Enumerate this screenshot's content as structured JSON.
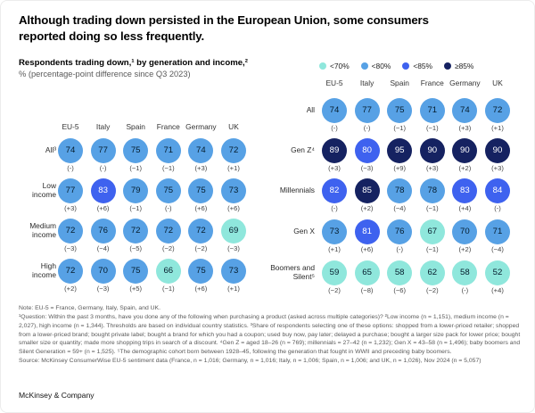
{
  "page": {
    "title_line1": "Although trading down persisted in the European Union, some consumers",
    "title_line2": "reported doing so less frequently.",
    "logo": "McKinsey & Company"
  },
  "subtitle": {
    "heading": "Respondents trading down,¹ by generation and income,²",
    "unit": "% (percentage-point difference since Q3 2023)"
  },
  "legend": {
    "items": [
      {
        "label": "<70%",
        "color": "#8FE7DC"
      },
      {
        "label": "<80%",
        "color": "#57A1E5"
      },
      {
        "label": "<85%",
        "color": "#3E62EF"
      },
      {
        "label": "≥85%",
        "color": "#152261"
      }
    ]
  },
  "palette": {
    "teal_lt70": "#8FE7DC",
    "blue_lt80": "#57A1E5",
    "royal_lt85": "#3E62EF",
    "navy_ge85": "#152261",
    "dark_text": "#051C2C",
    "light_text": "#FFFFFF"
  },
  "chart_data": {
    "type": "circle-matrix",
    "title": "Respondents trading down, by generation and income",
    "unit": "% of respondents; parentheses show percentage-point difference since Q3 2023",
    "color_rule": "value <70 teal; 70-79 blue; 80-84 royal blue; >=85 navy; text white when value >=80",
    "columns": [
      "EU-5",
      "Italy",
      "Spain",
      "France",
      "Germany",
      "UK"
    ],
    "charts": [
      {
        "id": "income",
        "rows": [
          {
            "label": "All³",
            "values": [
              74,
              77,
              75,
              71,
              74,
              72
            ],
            "deltas": [
              "(-)",
              "(-)",
              "(−1)",
              "(−1)",
              "(+3)",
              "(+1)"
            ]
          },
          {
            "label": "Low income",
            "values": [
              77,
              83,
              79,
              75,
              75,
              73
            ],
            "deltas": [
              "(+3)",
              "(+6)",
              "(−1)",
              "(-)",
              "(+6)",
              "(+6)"
            ]
          },
          {
            "label": "Medium income",
            "values": [
              72,
              76,
              72,
              72,
              72,
              69
            ],
            "deltas": [
              "(−3)",
              "(−4)",
              "(−5)",
              "(−2)",
              "(−2)",
              "(−3)"
            ]
          },
          {
            "label": "High income",
            "values": [
              72,
              70,
              75,
              66,
              75,
              73
            ],
            "deltas": [
              "(+2)",
              "(−3)",
              "(+5)",
              "(−1)",
              "(+6)",
              "(+1)"
            ]
          }
        ]
      },
      {
        "id": "generation",
        "rows": [
          {
            "label": "All",
            "values": [
              74,
              77,
              75,
              71,
              74,
              72
            ],
            "deltas": [
              "(-)",
              "(-)",
              "(−1)",
              "(−1)",
              "(+3)",
              "(+1)"
            ]
          },
          {
            "label": "Gen Z⁴",
            "values": [
              89,
              80,
              95,
              90,
              90,
              90
            ],
            "deltas": [
              "(+3)",
              "(−3)",
              "(+9)",
              "(+3)",
              "(+2)",
              "(+3)"
            ]
          },
          {
            "label": "Millennials",
            "values": [
              82,
              85,
              78,
              78,
              83,
              84
            ],
            "deltas": [
              "(-)",
              "(+2)",
              "(−4)",
              "(−1)",
              "(+4)",
              "(-)"
            ]
          },
          {
            "label": "Gen X",
            "values": [
              73,
              81,
              76,
              67,
              70,
              71
            ],
            "deltas": [
              "(+1)",
              "(+6)",
              "(-)",
              "(−1)",
              "(+2)",
              "(−4)"
            ]
          },
          {
            "label": "Boomers and Silent⁵",
            "values": [
              59,
              65,
              58,
              62,
              58,
              52
            ],
            "deltas": [
              "(−2)",
              "(−8)",
              "(−6)",
              "(−2)",
              "(-)",
              "(+4)"
            ]
          }
        ]
      }
    ]
  },
  "footnotes": {
    "note": "Note: EU-5 = France, Germany, Italy, Spain, and UK.",
    "details": "¹Question: Within the past 3 months, have you done any of the following when purchasing a product (asked across multiple categories)? ²Low income (n = 1,151), medium income (n = 2,027), high income (n = 1,344). Thresholds are based on individual country statistics. ³Share of respondents selecting one of these options: shopped from a lower-priced retailer; shopped from a lower-priced brand; bought private label; bought a brand for which you had a coupon; used buy now, pay later; delayed a purchase; bought a larger size pack for lower price; bought smaller size or quantity; made more shopping trips in search of a discount. ⁴Gen Z = aged 18–26 (n = 769); millennials = 27–42 (n = 1,232); Gen X = 43–58 (n = 1,496); baby boomers and Silent Generation = 59+ (n = 1,525). ⁵The demographic cohort born between 1928–45, following the generation that fought in WWII and preceding baby boomers.",
    "source": "Source: McKinsey ConsumerWise EU-5 sentiment data (France, n = 1,016; Germany, n = 1,016; Italy, n = 1,006; Spain, n = 1,006; and UK, n = 1,026), Nov 2024 (n = 5,057)"
  }
}
